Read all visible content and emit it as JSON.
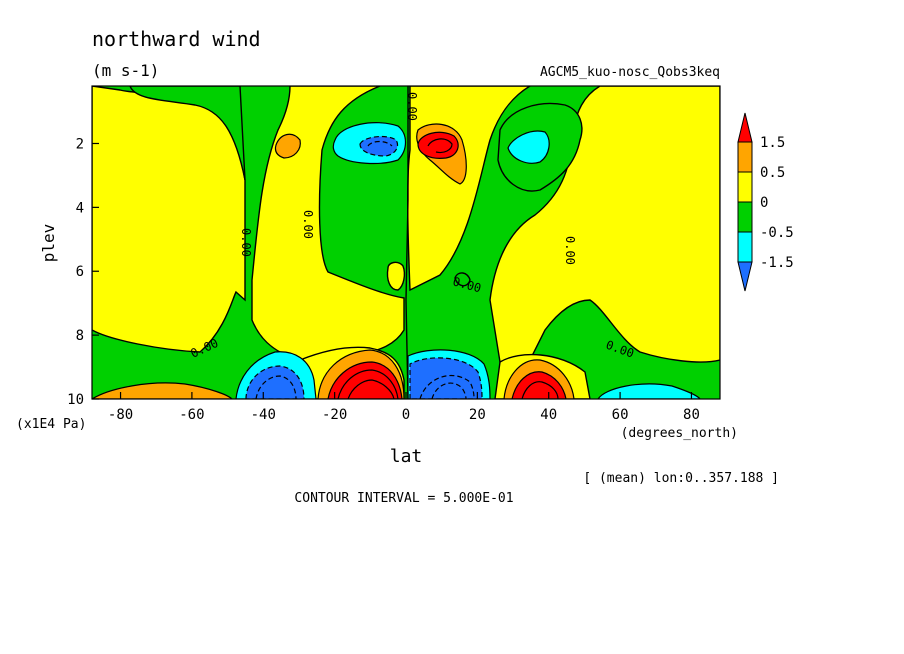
{
  "chart_data": {
    "type": "contour",
    "title": "northward wind",
    "units": "(m s-1)",
    "run_label": "AGCM5_kuo-nosc_Qobs3keq",
    "xlabel": "lat",
    "x_units": "(degrees_north)",
    "ylabel": "plev",
    "y_units": "(x1E4 Pa)",
    "x_range": [
      -88,
      88
    ],
    "y_range": [
      10,
      0.2
    ],
    "y_reversed": true,
    "x_ticks": [
      "-80",
      "-60",
      "-40",
      "-20",
      "0",
      "20",
      "40",
      "60",
      "80"
    ],
    "x_tick_values": [
      -80,
      -60,
      -40,
      -20,
      0,
      20,
      40,
      60,
      80
    ],
    "y_ticks": [
      "2",
      "4",
      "6",
      "8",
      "10"
    ],
    "y_tick_values": [
      2,
      4,
      6,
      8,
      10
    ],
    "averaging_note": "[ (mean) lon:0..357.188 ]",
    "contour_interval": "CONTOUR INTERVAL = 5.000E-01",
    "zero_contour_label": "0.00",
    "colorbar": {
      "labels": [
        "1.5",
        "0.5",
        "0",
        "-0.5",
        "-1.5"
      ],
      "colors": [
        "#ff0000",
        "#ffa500",
        "#ffff00",
        "#00d000",
        "#00ffff",
        "#1e6fff"
      ]
    },
    "features": [
      {
        "lat": -10,
        "plev": 9.6,
        "sign": "positive",
        "peak": 2.5
      },
      {
        "lat": 12,
        "plev": 9.6,
        "sign": "negative",
        "peak": -2.5
      },
      {
        "lat": -37,
        "plev": 9.5,
        "sign": "negative",
        "peak": -1.5
      },
      {
        "lat": 37,
        "plev": 9.5,
        "sign": "positive",
        "peak": 1.5
      },
      {
        "lat": -5,
        "plev": 2.0,
        "sign": "negative",
        "peak": -1.5
      },
      {
        "lat": 7,
        "plev": 2.0,
        "sign": "positive",
        "peak": 1.5
      },
      {
        "lat": -64,
        "plev": 10.0,
        "sign": "positive",
        "peak": 0.5
      },
      {
        "lat": 67,
        "plev": 10.0,
        "sign": "negative",
        "peak": -0.5
      },
      {
        "lat": -35,
        "plev": 2.0,
        "sign": "positive",
        "peak": 0.5
      },
      {
        "lat": 35,
        "plev": 2.0,
        "sign": "negative",
        "peak": -0.5
      }
    ]
  }
}
